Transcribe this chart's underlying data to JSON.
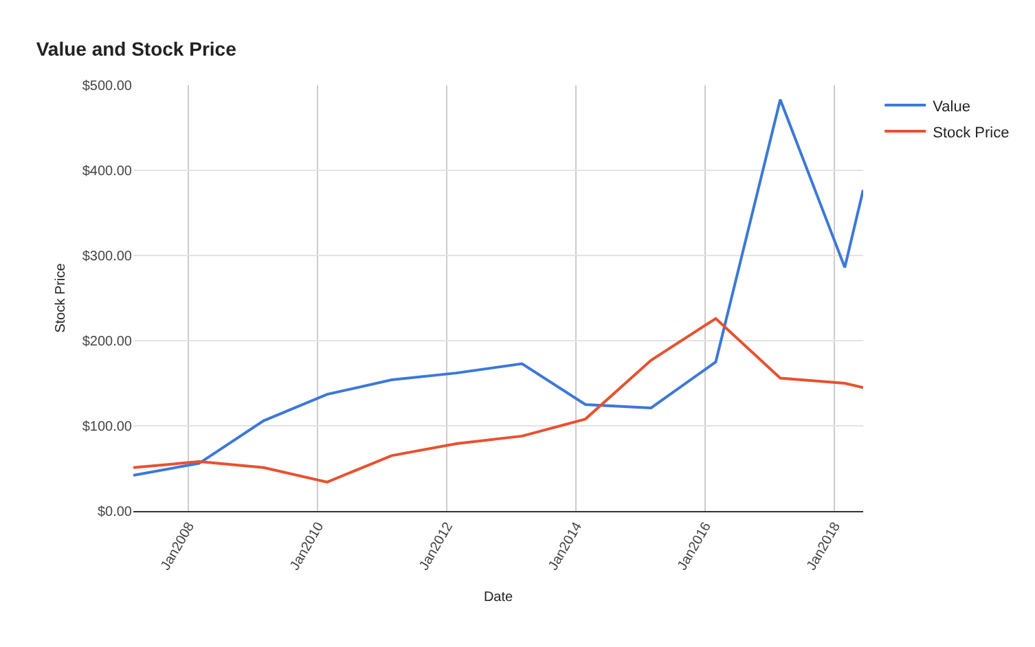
{
  "chart_data": {
    "type": "line",
    "title": "Value and Stock Price",
    "xlabel": "Date",
    "ylabel": "Stock Price",
    "x": [
      "2007-02-23",
      "2008-03-01",
      "2009-03-01",
      "2010-02-23",
      "2011-02-23",
      "2012-02-23",
      "2013-03-01",
      "2014-02-23",
      "2015-03-01",
      "2016-03-01",
      "2017-03-01",
      "2018-03-01",
      "2018-06-13"
    ],
    "series": [
      {
        "name": "Value",
        "color": "#3c78d8",
        "values": [
          42,
          56,
          106,
          137,
          154,
          162,
          173,
          125,
          121,
          175,
          483,
          286,
          377
        ]
      },
      {
        "name": "Stock Price",
        "color": "#e8512f",
        "values": [
          51,
          58,
          51,
          34,
          65,
          79,
          88,
          108,
          177,
          226,
          156,
          150,
          145
        ]
      }
    ],
    "xlim": [
      "2007-02-23",
      "2018-06-13"
    ],
    "xticks": [
      {
        "value": "2008-01-01",
        "label": "Jan2008"
      },
      {
        "value": "2010-01-01",
        "label": "Jan2010"
      },
      {
        "value": "2012-01-01",
        "label": "Jan2012"
      },
      {
        "value": "2014-01-01",
        "label": "Jan2014"
      },
      {
        "value": "2016-01-01",
        "label": "Jan2016"
      },
      {
        "value": "2018-01-01",
        "label": "Jan2018"
      }
    ],
    "ylim": [
      0,
      500
    ],
    "yticks": [
      {
        "value": 0,
        "label": "$0.00"
      },
      {
        "value": 100,
        "label": "$100.00"
      },
      {
        "value": 200,
        "label": "$200.00"
      },
      {
        "value": 300,
        "label": "$300.00"
      },
      {
        "value": 400,
        "label": "$400.00"
      },
      {
        "value": 500,
        "label": "$500.00"
      }
    ],
    "grid": true,
    "legend": "top right",
    "marker": "none",
    "line_style": "solid"
  }
}
